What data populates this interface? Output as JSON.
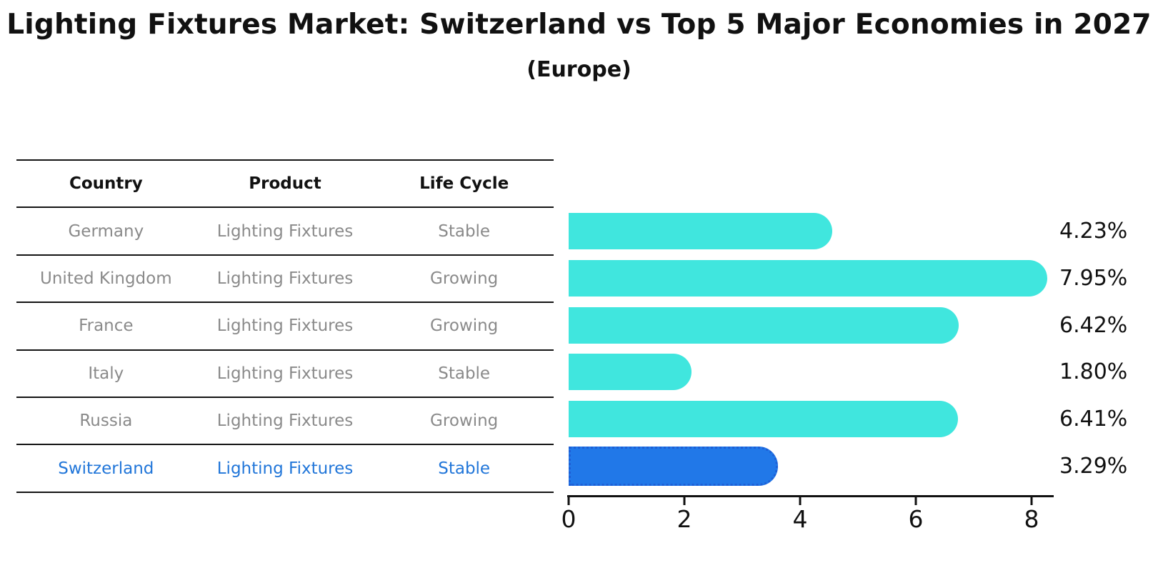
{
  "title": "Lighting Fixtures Market: Switzerland vs Top 5 Major Economies in 2027",
  "subtitle": "(Europe)",
  "table": {
    "columns": [
      "Country",
      "Product",
      "Life Cycle"
    ],
    "rows": [
      {
        "country": "Germany",
        "product": "Lighting Fixtures",
        "life_cycle": "Stable",
        "highlight": false
      },
      {
        "country": "United Kingdom",
        "product": "Lighting Fixtures",
        "life_cycle": "Growing",
        "highlight": false
      },
      {
        "country": "France",
        "product": "Lighting Fixtures",
        "life_cycle": "Growing",
        "highlight": false
      },
      {
        "country": "Italy",
        "product": "Lighting Fixtures",
        "life_cycle": "Stable",
        "highlight": false
      },
      {
        "country": "Russia",
        "product": "Lighting Fixtures",
        "life_cycle": "Growing",
        "highlight": false
      },
      {
        "country": "Switzerland",
        "product": "Lighting Fixtures",
        "life_cycle": "Stable",
        "highlight": true
      }
    ]
  },
  "chart_data": {
    "type": "bar",
    "orientation": "horizontal",
    "categories": [
      "Germany",
      "United Kingdom",
      "France",
      "Italy",
      "Russia",
      "Switzerland"
    ],
    "values": [
      4.23,
      7.95,
      6.42,
      1.8,
      6.41,
      3.29
    ],
    "labels": [
      "4.23%",
      "7.95%",
      "6.42%",
      "1.80%",
      "6.41%",
      "3.29%"
    ],
    "x_ticks": [
      "0",
      "2",
      "4",
      "6",
      "8"
    ],
    "x_tick_values": [
      0,
      2,
      4,
      6,
      8
    ],
    "xlim": [
      0,
      8.37
    ],
    "grid": false,
    "legend": false,
    "highlight_index": 5,
    "bar_color": "#40E6DE",
    "highlight_bar_color": "#2178E8",
    "highlight_border_color": "#1E5FD6"
  },
  "colors": {
    "text": "#111111",
    "muted_text": "#8A8A8A",
    "highlight_text": "#2176D9",
    "line": "#141414"
  }
}
